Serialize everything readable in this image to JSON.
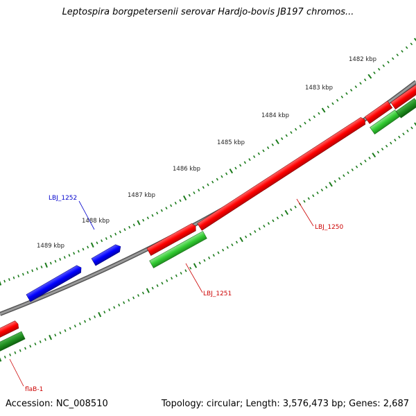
{
  "title": "Leptospira borgpetersenii serovar Hardjo-bovis JB197 chromos...",
  "footer": {
    "accession": "Accession: NC_008510",
    "summary": "Topology: circular; Length: 3,576,473 bp; Genes: 2,687"
  },
  "scale_labels": [
    "1482 kbp",
    "1483 kbp",
    "1484 kbp",
    "1485 kbp",
    "1486 kbp",
    "1487 kbp",
    "1488 kbp",
    "1489 kbp"
  ],
  "gene_labels": [
    "LBJ_1252",
    "LBJ_1250",
    "LBJ_1251",
    "flaB-1"
  ],
  "colors": {
    "backbone": "#808080",
    "forward_cds": "#0000ff",
    "reverse_cds": "#ff0000",
    "gene_green": "#33cc33",
    "gene_green_dark": "#1f8f1f",
    "tick": "#1a7a1a",
    "label_blue": "#0000cc",
    "label_red": "#cc0000"
  }
}
